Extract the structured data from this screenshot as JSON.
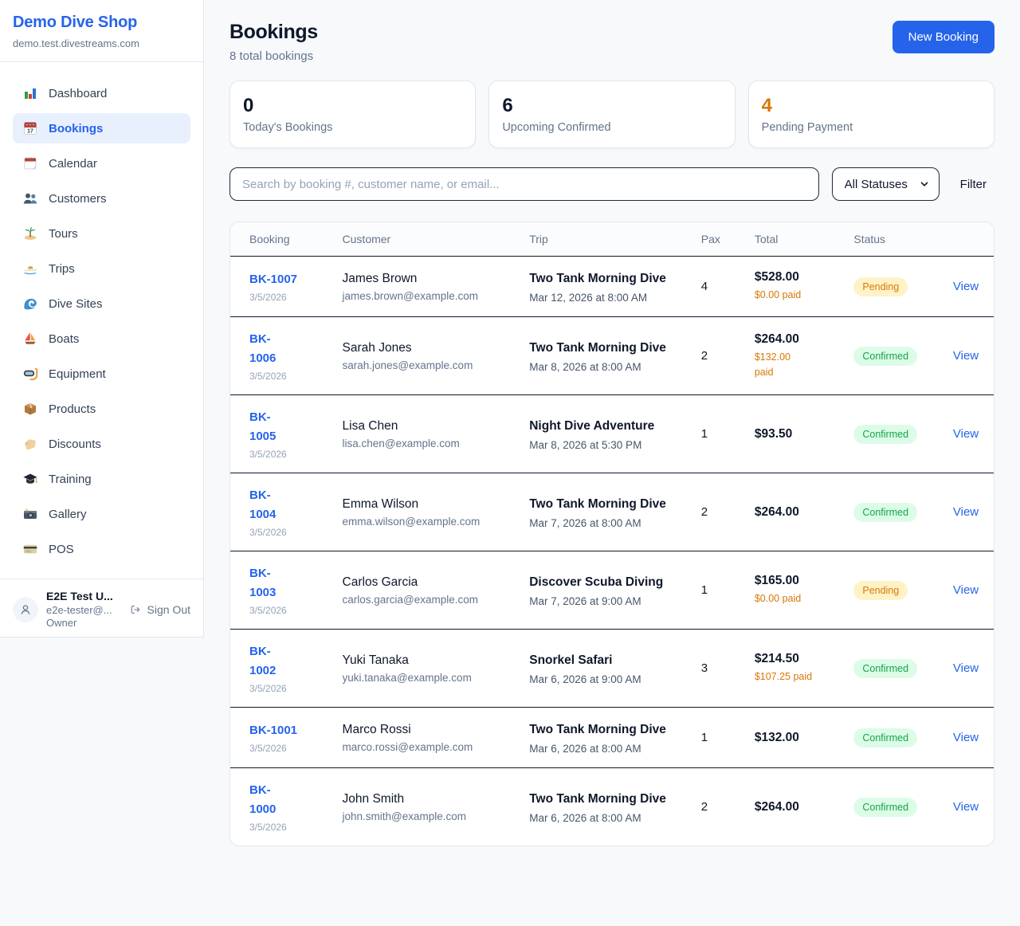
{
  "sidebar": {
    "brand": {
      "name": "Demo Dive Shop",
      "domain": "demo.test.divestreams.com"
    },
    "items": [
      {
        "label": "Dashboard",
        "icon": "bar-chart",
        "active": false
      },
      {
        "label": "Bookings",
        "icon": "bookings-calendar",
        "active": true
      },
      {
        "label": "Calendar",
        "icon": "calendar",
        "active": false
      },
      {
        "label": "Customers",
        "icon": "people",
        "active": false
      },
      {
        "label": "Tours",
        "icon": "island",
        "active": false
      },
      {
        "label": "Trips",
        "icon": "speedboat",
        "active": false
      },
      {
        "label": "Dive Sites",
        "icon": "wave",
        "active": false
      },
      {
        "label": "Boats",
        "icon": "sailboat",
        "active": false
      },
      {
        "label": "Equipment",
        "icon": "dive-mask",
        "active": false
      },
      {
        "label": "Products",
        "icon": "package",
        "active": false
      },
      {
        "label": "Discounts",
        "icon": "tag",
        "active": false
      },
      {
        "label": "Training",
        "icon": "graduation-cap",
        "active": false
      },
      {
        "label": "Gallery",
        "icon": "camera",
        "active": false
      },
      {
        "label": "POS",
        "icon": "credit-card",
        "active": false
      }
    ],
    "user": {
      "name": "E2E Test U...",
      "email": "e2e-tester@...",
      "role": "Owner",
      "sign_out_label": "Sign Out"
    }
  },
  "header": {
    "title": "Bookings",
    "subtitle": "8 total bookings",
    "new_booking_label": "New Booking"
  },
  "stats": [
    {
      "value": "0",
      "label": "Today's Bookings",
      "highlight": false
    },
    {
      "value": "6",
      "label": "Upcoming Confirmed",
      "highlight": false
    },
    {
      "value": "4",
      "label": "Pending Payment",
      "highlight": true
    }
  ],
  "controls": {
    "search_placeholder": "Search by booking #, customer name, or email...",
    "status_filter_value": "All Statuses",
    "filter_label": "Filter"
  },
  "table": {
    "headers": [
      "Booking",
      "Customer",
      "Trip",
      "Pax",
      "Total",
      "Status",
      ""
    ],
    "view_label": "View",
    "rows": [
      {
        "id": "BK-1007",
        "date": "3/5/2026",
        "customer": "James Brown",
        "email": "james.brown@example.com",
        "trip": "Two Tank Morning Dive",
        "trip_datetime": "Mar 12, 2026 at 8:00 AM",
        "pax": "4",
        "total": "$528.00",
        "paid": "$0.00 paid",
        "status": "Pending"
      },
      {
        "id": "BK-\n1006",
        "date": "3/5/2026",
        "customer": "Sarah Jones",
        "email": "sarah.jones@example.com",
        "trip": "Two Tank Morning Dive",
        "trip_datetime": "Mar 8, 2026 at 8:00 AM",
        "pax": "2",
        "total": "$264.00",
        "paid": "$132.00\npaid",
        "status": "Confirmed"
      },
      {
        "id": "BK-\n1005",
        "date": "3/5/2026",
        "customer": "Lisa Chen",
        "email": "lisa.chen@example.com",
        "trip": "Night Dive Adventure",
        "trip_datetime": "Mar 8, 2026 at 5:30 PM",
        "pax": "1",
        "total": "$93.50",
        "paid": "",
        "status": "Confirmed"
      },
      {
        "id": "BK-\n1004",
        "date": "3/5/2026",
        "customer": "Emma Wilson",
        "email": "emma.wilson@example.com",
        "trip": "Two Tank Morning Dive",
        "trip_datetime": "Mar 7, 2026 at 8:00 AM",
        "pax": "2",
        "total": "$264.00",
        "paid": "",
        "status": "Confirmed"
      },
      {
        "id": "BK-\n1003",
        "date": "3/5/2026",
        "customer": "Carlos Garcia",
        "email": "carlos.garcia@example.com",
        "trip": "Discover Scuba Diving",
        "trip_datetime": "Mar 7, 2026 at 9:00 AM",
        "pax": "1",
        "total": "$165.00",
        "paid": "$0.00 paid",
        "status": "Pending"
      },
      {
        "id": "BK-\n1002",
        "date": "3/5/2026",
        "customer": "Yuki Tanaka",
        "email": "yuki.tanaka@example.com",
        "trip": "Snorkel Safari",
        "trip_datetime": "Mar 6, 2026 at 9:00 AM",
        "pax": "3",
        "total": "$214.50",
        "paid": "$107.25 paid",
        "status": "Confirmed"
      },
      {
        "id": "BK-1001",
        "date": "3/5/2026",
        "customer": "Marco Rossi",
        "email": "marco.rossi@example.com",
        "trip": "Two Tank Morning Dive",
        "trip_datetime": "Mar 6, 2026 at 8:00 AM",
        "pax": "1",
        "total": "$132.00",
        "paid": "",
        "status": "Confirmed"
      },
      {
        "id": "BK-\n1000",
        "date": "3/5/2026",
        "customer": "John Smith",
        "email": "john.smith@example.com",
        "trip": "Two Tank Morning Dive",
        "trip_datetime": "Mar 6, 2026 at 8:00 AM",
        "pax": "2",
        "total": "$264.00",
        "paid": "",
        "status": "Confirmed"
      }
    ]
  },
  "colors": {
    "accent": "#2563eb",
    "active_nav_bg": "#e8f0fe",
    "warning_orange": "#d97706",
    "pending_bg": "#fef3c7",
    "pending_text": "#d97706",
    "confirmed_bg": "#dcfce7",
    "confirmed_text": "#16a34a"
  }
}
